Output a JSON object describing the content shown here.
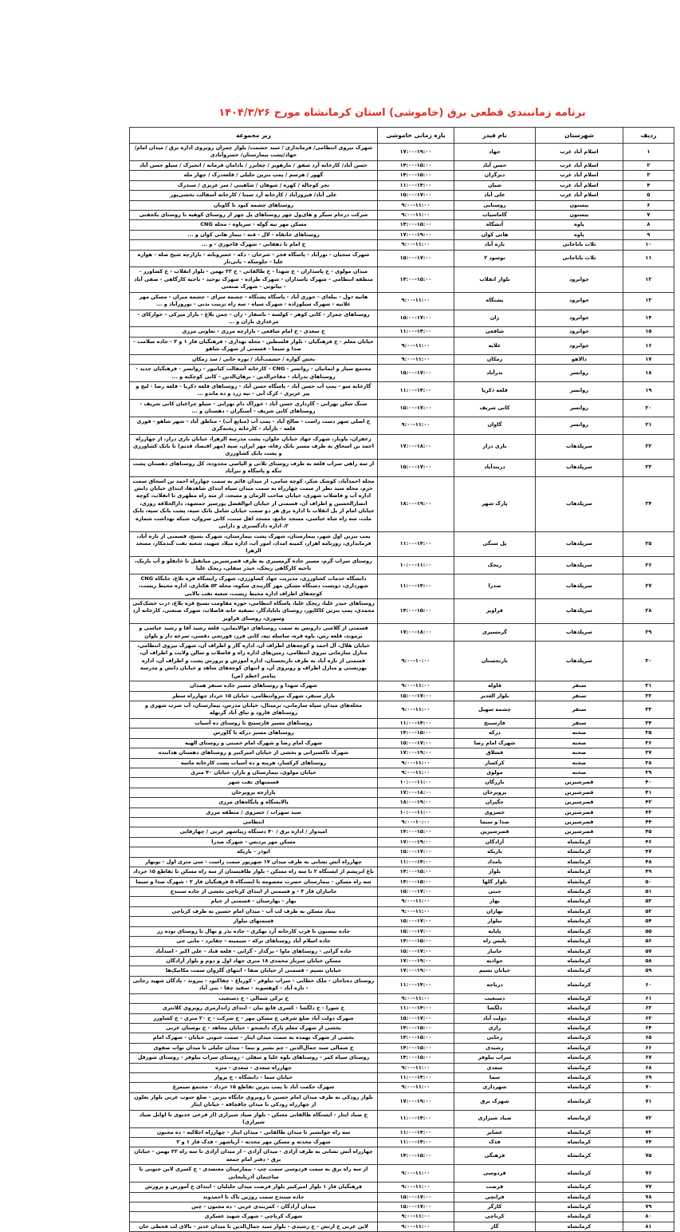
{
  "title": "برنامه زمانبندی  قطعی برق (خاموشی) استان کرمانشاه مورخ ۱۴۰۴/۳/۲۶",
  "title_color": "#e03127",
  "table": {
    "headers": {
      "no": "ردیف",
      "county": "شهرستان",
      "feeder": "نام فیدر",
      "time": "بازه زمانی خاموشی",
      "details": "زیر مجموعه"
    },
    "rows": [
      {
        "no": "۱",
        "county": "اسلام آباد غرب",
        "feeder": "جهاد",
        "time": "۱۷:۰۰-۱۹:۰۰",
        "details": "شهرک نیروی انتظامی/ فرمانداری / سید حشمت/ بلوار چمران روبروی اداره برق / میدان امام/جهاد/پشت بیمارستان/ خسروآبادی"
      },
      {
        "no": "۲",
        "county": "اسلام آباد غرب",
        "feeder": "حسن آباد",
        "time": "۱۴:۰۰-۱۵:۰۰",
        "details": "حسن آباد/ کارخانه آرد شفق / مارهویز / چغابزر / بادامان فرمانه / انجیرک / سیلو حسن آباد"
      },
      {
        "no": "۳",
        "county": "اسلام آباد غرب",
        "feeder": "دیزگران",
        "time": "۱۴:۰۰-۱۵:۰۰",
        "details": "گهور / هرسم / پمپ بنزین جلیلی / قلعه‌درک / چهار مله"
      },
      {
        "no": "۴",
        "county": "اسلام آباد غرب",
        "feeder": "شیان",
        "time": "۱۱:۰۰-۱۴:۰۰",
        "details": "تجر کوچاله / کهره / شوهان / شاهینی / سر عزیزی / سندرک"
      },
      {
        "no": "۵",
        "county": "اسلام آباد غرب",
        "feeder": "علی آباد",
        "time": "۱۵:۰۰-۱۷:۰۰",
        "details": "علی آباد/ فیروزآباد / کارخانه آرد سینا / کارخانه آسفالت بخشی‌پور"
      },
      {
        "no": "۶",
        "county": "بیستون",
        "feeder": "روستایی",
        "time": "۹:۰۰-۱۱:۰۰",
        "details": "روستاهای چشمه کبود تا گاوبان"
      },
      {
        "no": "۷",
        "county": "بیستون",
        "feeder": "گاماسیاب",
        "time": "۹:۰۰-۱۱:۰۰",
        "details": "شرکت درجام سیگر و های‌ول چهر روستاهای پل چهر از روستای کوهیه تا روستای یکجفتی"
      },
      {
        "no": "۸",
        "county": "پاوه",
        "feeder": "آتشگاه",
        "time": "۱۴:۰۰-۱۵:۰۰",
        "details": "مسکن مهر تپه گوله - سرپاوه - محله CNG"
      },
      {
        "no": "۹",
        "county": "پاوه",
        "feeder": "هانی کوان",
        "time": "۱۷:۰۰-۱۹:۰۰",
        "details": "روستاهای خانقاه - لال - فنه - بیمار هانی کوان و ..."
      },
      {
        "no": "۱۰",
        "county": "ثلاث باباجانی",
        "feeder": "تازه آباد",
        "time": "۹:۰۰-۱۱:۰۰",
        "details": "خ امام تا دهقانی - شهرک فاجوری - و ..."
      },
      {
        "no": "۱۱",
        "county": "ثلاث باباجانی",
        "feeder": "نوسود ۲",
        "time": "۱۵:۰۰-۱۷:۰۰",
        "details": "شهرک سجیان - نورآباد - پاسگاه فجر - شرخان - دکه - خسروبانه - بازارچه شیخ صله - هواره علیا - جلوسکه - بانی‌تار"
      },
      {
        "no": "۱۲",
        "county": "جوانرود",
        "feeder": "بلوار انقلاب",
        "time": "۱۴:۰۰-۱۵:۰۰",
        "details": "میدان مولوی - خ پاسداران - خ شهدا - خ طالقانی - خ ۲۲ بهمن - بلوار انقلاب - خ کشاورز - منطقه انتظامی - شهرک پاسداران - شهرک طراده - شهرک توحید - ناحیه کارگاهی - صفی آباد - بیانونی - شهرک صنعتی"
      },
      {
        "no": "۱۳",
        "county": "جوانرود",
        "feeder": "پشتگاه",
        "time": "۹:۰۰-۱۱:۰۰",
        "details": "هانیه ذول - بیله‌ای - حوری آباد - پاسگاه پشتگاه - چشمه سرای - چشمه میران - مسکن مهر علانیه - شهرک سیلوزاده - شهرک سپاه - سه راه تربیت بدنی - نوروزآباد و ..."
      },
      {
        "no": "۱۴",
        "county": "جوانرود",
        "feeder": "زان",
        "time": "۱۵:۰۰-۱۷:۰۰",
        "details": "روستاهای چمزار - کانی کوهر - کولسه - باسفار - زان - چمن بلاغ - بازار میرکی - خوارکای - مرغداری بازان و ..."
      },
      {
        "no": "۱۵",
        "county": "جوانرود",
        "feeder": "شافعی",
        "time": "۱۱:۰۰-۱۴:۰۰",
        "details": "خ سعدی - خ امام شافعی - بازارچه مرزی - تعاونی مرزی"
      },
      {
        "no": "۱۶",
        "county": "جوانرود",
        "feeder": "علایه",
        "time": "۹:۰۰-۱۱:۰۰",
        "details": "خیابان معلم - خ فرهنگیان - بلوار فلسطین - محله بهداری - فرهنگیان فاز ۱ و ۳ - جاده سلامت - صدا و سیما - قسمتی از شهرک شاهو"
      },
      {
        "no": "۱۷",
        "county": "دالاهو",
        "feeder": "زمکان",
        "time": "۹:۰۰-۱۱:۰۰",
        "details": "بخش گواره / حشمت‌آباد / بوره خانی / سد زمکان"
      },
      {
        "no": "۱۸",
        "county": "روانسر",
        "feeder": "بدرآباد",
        "time": "۱۵:۰۰-۱۷:۰۰",
        "details": "مجتمع سیار و ایمانیان - روانسر - CNG - کارخانه آسفالت کیانپور - روانسر - فرهنگیان جدید - روستاهای بدرآباد - مفاخرالدین - برهان‌الدین - کانی کوچکیه و ..."
      },
      {
        "no": "۱۹",
        "county": "روانسر",
        "feeder": "قلعه ذکریا",
        "time": "۱۱:۰۰-۱۴:۰۰",
        "details": "گازخانه سو - پمپ آب حسن آباد - پاسگاه حسن آباد - روستاهای قلعه ذکریا - قلعه رضا - لیج و پیر عزیزی - کرک آبی - تپه زرد و ده ماندو ..."
      },
      {
        "no": "۲۰",
        "county": "روانسر",
        "feeder": "کانی شریف",
        "time": "۱۵:۰۰-۱۷:۰۰",
        "details": "سنگ شکن نهرابی - گازداری حسن آباد - خوراک دام نهرابی - سیلو چراغیان کانی شریف - روستاهای کانی شریف - آسنگران - دهستان و ..."
      },
      {
        "no": "۲۱",
        "county": "روانسر",
        "feeder": "گاوان",
        "time": "۹:۰۰-۱۱:۰۰",
        "details": "خ اصلی شهر دست راست - صالح آباد - پمپ آب (منابع آب) - مناطق آباد - شهر شاهو - قوری قلعه - نازآباد - کارخانه ریخته‌گری"
      },
      {
        "no": "۲۲",
        "county": "سرپلذهاب",
        "feeder": "بازی دراز",
        "time": "۱۷:۰۰-۱۸:۰۰",
        "details": "زعفران، پاوبار، شهرک جهاد خیابان حلوان، پشت مدرسه الزهرا، خیابان بازی دراز، از چهارراه احمد بن اسحاق به طرف مسیر بانک رفاه، مهر ایران، سپه (مهر اقتصاد قدیم) تا بانک کشاورزی و پشت بانک کشاورزی"
      },
      {
        "no": "۲۳",
        "county": "سرپلذهاب",
        "feeder": "دربندآباد",
        "time": "۱۵:۰۰-۱۷:۰۰",
        "details": "از سه راهی سراب قلعه به طرف روستای ثلاثی و الیاسی محدوده، کل روستاهای دهستان پشت تنگه و پاسگاه و نیرآباد"
      },
      {
        "no": "۲۴",
        "county": "سرپلذهاب",
        "feeder": "پارک شهر",
        "time": "۱۸:۰۰-۱۹:۰۰",
        "details": "محله احمدآباد، کوشک شکر، کوچه شامی، از میدان قائم به سمت چهارراه احمد بن اسحاق سمت حرم، محله سید نظر از سمت چهارراه به سمت میدان سپاه ابتدای شاهدها، ابتدای خیابان دانش اداره آب و فاضلاب شهری، خیابان صاحب الزمان و مسجد، از سه راه مطهری تا انقلاب، کوچه انصارالحسین و اطراف آن، قسمتی از خیابان ابوالفضل پورسپر جمشهد، دارالخلافه روزی، خیابان امام از پل انقلاب تا اداره برق هر دو سمت خیابان شامل بانک سپه، پشت بانک سپه، بانک ملت، سه راه شاه عباسی، مسجد جامع، مسجد اهل سنت، کانی سروان، شبکه بهداشت شماره ۲، اداره دادگستری و دارایی"
      },
      {
        "no": "۲۵",
        "county": "سرپلذهاب",
        "feeder": "پل سنگی",
        "time": "۱۱:۰۰-۱۴:۰۰",
        "details": "پمپ بنزین اول شهر، بیمارستان، شهرک پشت بیمارستان، شهرک بسیج، قسمتی از تازه آباد، فرمانداری، روزنامه اهرار، کمیته امداد، امور آب، اداره میلاد شهید، شعبه نفت گندمکار، مسجد الزهرا"
      },
      {
        "no": "۲۶",
        "county": "سرپلذهاب",
        "feeder": "ریجک",
        "time": "۱۰:۰۰-۱۱:۰۰",
        "details": "روستای سراب گرم، مسیر جاده گرمسیری به طرف قصرشیرین میانقیل تا خانقلو و آب باریک، ناحیه کارگاهی ریجک، حیدر سفلی، ریجک علیا"
      },
      {
        "no": "۲۷",
        "county": "سرپلذهاب",
        "feeder": "صدرا",
        "time": "۱۱:۰۰-۱۴:۰۰",
        "details": "دانشگاه خدمات کشاورزی، مدیریت جهاد کشاورزی، شهرک زایشگاه قره بلاغ، جایگاه CNG شهرداری، دویست دستگاه مسکن مهر گازبندی شکوه، محله ۵۳ هکتاری، اداره محیط زیست، کوچه‌های اطراف اداره محیط زیست، شعبه نفت بالایی"
      },
      {
        "no": "۲۸",
        "county": "سرپلذهاب",
        "feeder": "قراویز",
        "time": "۱۴:۰۰-۱۵:۰۰",
        "details": "روستاهای حیدر علیا، ریجک علیا، پاسگاه انتظامی، حوزه مقاومت بسیج قره بلاغ، ذرت خشک‌کنی محمدی، پمپ بنزین کاکاپور، روستای بابایادگار، تصفیه خانه فاضلاب، شهرک صنعتی، کارخانه آرد وسوری، روستای قراویز"
      },
      {
        "no": "۲۹",
        "county": "سرپلذهاب",
        "feeder": "گرمسیری",
        "time": "۱۷:۰۰-۱۸:۰۰",
        "details": "قسمتی از گلاشی داروبس به سمت روستاهای ذوالایمانی، قلعه رشید آقا و رشید عباسی و برموند، قلعه رش، باوه قره، ساسله تپه، کانی فرز، قورنجی دقسی، سرخه دار و بلوان"
      },
      {
        "no": "۳۰",
        "county": "سرپلذهاب",
        "feeder": "نارنجستان",
        "time": "۹:۰۰-۱۰:۰۰",
        "details": "خیابان هلال، آل احمد و کوچه‌های اطراف آن، اداره گاز و اطراف آن، شهرک نیروی انتظامی، منازل سازمانی نیروی انتظامی، زمین‌های اداره راه و فاضلاب و سالن ولایت و اطراف آن، قسمتی از تازه آباد به طرف نارنجستان، اداره آموزش و پرورش پشت و اطراف آن، اداره بهزیستی و منازل اطراف و روبروی آن، و انتهای کوچه‌های شاهد و خیابان دانش و مدرسه پیامبر اعظم (ص)"
      },
      {
        "no": "۳۱",
        "county": "سنقر",
        "feeder": "فاوله",
        "time": "۹:۰۰-۱۱:۰۰",
        "details": "شهرک شهدا و روستاهای مسیر جاده سنقر همدان"
      },
      {
        "no": "۳۲",
        "county": "سنقر",
        "feeder": "بلوار الغدیر",
        "time": "۱۵:۰۰-۱۷:۰۰",
        "details": "بازار سنقر، شهرک نیروانتظامی، خیابان ۱۵ خرداد چهارراه سطر"
      },
      {
        "no": "۳۳",
        "county": "سنقر",
        "feeder": "چشمه سهیل",
        "time": "۹:۰۰-۱۱:۰۰",
        "details": "محله‌های میدان سپاه سازمانی، ترمینال، خیابان مدرس، بیمارستان، آب شرب شهری و روستاهای فارود و نیاق آباد گزنهله"
      },
      {
        "no": "۳۴",
        "county": "سنقر",
        "feeder": "فارسینج",
        "time": "۱۱:۰۰-۱۴:۰۰",
        "details": "روستاهای مسیر فارسینج تا روستای ده آسیاب"
      },
      {
        "no": "۳۵",
        "county": "صحنه",
        "feeder": "درکه",
        "time": "۱۴:۰۰-۱۵:۰۰",
        "details": "روستاهای مسیر درکه تا گاورس"
      },
      {
        "no": "۳۶",
        "county": "صحنه",
        "feeder": "شهرک امام رضا",
        "time": "۱۵:۰۰-۱۷:۰۰",
        "details": "شهرک امام رضا و شهرک امام خمینی و روستای الهیه"
      },
      {
        "no": "۳۷",
        "county": "صحنه",
        "feeder": "قشلاق",
        "time": "۱۷:۰۰-۱۹:۰۰",
        "details": "شهرک تاکسیرانی و بخشی از خیابان امیرکبیر و روستاهای دهستان هدابنده"
      },
      {
        "no": "۳۸",
        "county": "صحنه",
        "feeder": "کرکسار",
        "time": "۹:۰۰-۱۱:۰۰",
        "details": "روستاهای کرکسار، هرینه و ده آسیاب پست کارخانه ماسه"
      },
      {
        "no": "۳۹",
        "county": "صحنه",
        "feeder": "مولوی",
        "time": "۹:۰۰-۱۱:۰۰",
        "details": "خیابان مولوی، بیمارستان و بازار، خیابان ۴۰ متری"
      },
      {
        "no": "۴۰",
        "county": "قصرشیرین",
        "feeder": "بازرگان",
        "time": "۱۰:۰۰-۱۱:۰۰",
        "details": "قسمتهای نفت شهر"
      },
      {
        "no": "۴۱",
        "county": "قصرشیرین",
        "feeder": "پرویزخان",
        "time": "۱۷:۰۰-۱۸:۰۰",
        "details": "بازارچه پرویزخان"
      },
      {
        "no": "۴۲",
        "county": "قصرشیرین",
        "feeder": "جگیران",
        "time": "۱۸:۰۰-۱۹:۰۰",
        "details": "پالایشگاه و پایگاه‌های مرزی"
      },
      {
        "no": "۴۳",
        "county": "قصرشیرین",
        "feeder": "خسروی",
        "time": "۱۰:۰۰-۱۱:۰۰",
        "details": "سید سهراب / خسروی / منطقه مرزی"
      },
      {
        "no": "۴۴",
        "county": "قصرشیرین",
        "feeder": "صدا و سیما",
        "time": "۹:۰۰-۱۰:۰۰",
        "details": "انتظامی"
      },
      {
        "no": "۴۵",
        "county": "قصرشیرین",
        "feeder": "قصرشیرین",
        "time": "۱۴:۰۰-۱۵:۰۰",
        "details": "امیدوار / اداره برق / ۴۰ دستگاه زیباشهر غربی / چهارقاپی"
      },
      {
        "no": "۴۶",
        "county": "کرمانشاه",
        "feeder": "آزادگان",
        "time": "۱۷:۰۰-۱۹:۰۰",
        "details": "مسکن مهر پردیس - شهرک صدرا"
      },
      {
        "no": "۴۷",
        "county": "کرمانشاه",
        "feeder": "باریکه",
        "time": "۱۵:۰۰-۱۷:۰۰",
        "details": "ابوذر - باریکه"
      },
      {
        "no": "۴۸",
        "county": "کرمانشاه",
        "feeder": "بامداد",
        "time": "۱۱:۰۰-۱۴:۰۰",
        "details": "چهارراه آتش نشانی به طرف میدان ۱۷ شهریور سمت راست - سی متری اول - نوبهار"
      },
      {
        "no": "۴۹",
        "county": "کرمانشاه",
        "feeder": "بلوار",
        "time": "۱۴:۰۰-۱۵:۰۰",
        "details": "باغ ابریشم از ایستگاه ۲ تا سه راه مسکن - بلوار طاقبستان از سه راه مسکن تا تقاطع ۱۵ خرداد"
      },
      {
        "no": "۵۰",
        "county": "کرمانشاه",
        "feeder": "بلوار گلها",
        "time": "۱۴:۰۰-۱۵:۰۰",
        "details": "سه راه مسکن - بیمارستان حضرت معصومه تا ایستگاه ۵ فرهنگیان فاز ۲ - شهرک صدا و سیما"
      },
      {
        "no": "۵۱",
        "county": "کرمانشاه",
        "feeder": "جنتی",
        "time": "۱۵:۰۰-۱۷:۰۰",
        "details": "جانبازان فاز ۳ - و قسمتی از ابتدای کرناچی بخشی از جاده سنندج"
      },
      {
        "no": "۵۲",
        "county": "کرمانشاه",
        "feeder": "بهار",
        "time": "۹:۰۰-۱۱:۰۰",
        "details": "بهار - بهارستان - قسمتی از خیام"
      },
      {
        "no": "۵۳",
        "county": "کرمانشاه",
        "feeder": "بهاران",
        "time": "۹:۰۰-۱۱:۰۰",
        "details": "بنیاد مسکن به طرف لب آب - میدان امام حسین به طرف کرناچی"
      },
      {
        "no": "۵۴",
        "county": "کرمانشاه",
        "feeder": "بیلوار",
        "time": "۱۵:۰۰-۱۷:۰۰",
        "details": "قسمتهای بیلوار"
      },
      {
        "no": "۵۵",
        "county": "کرمانشاه",
        "feeder": "پایانه",
        "time": "۱۵:۰۰-۱۷:۰۰",
        "details": "جاده بیستون تا قرب کارخانه آرد بهکری - جاده بذر و نهال تا روستای نوده رز"
      },
      {
        "no": "۵۶",
        "county": "کرمانشاه",
        "feeder": "پلیس راه",
        "time": "۱۴:۰۰-۱۵:۰۰",
        "details": "جاده اسلام آباد روستاهای ترکه - سیمینه - چقابرد - مابی جی"
      },
      {
        "no": "۵۷",
        "county": "کرمانشاه",
        "feeder": "جانیار",
        "time": "۱۵:۰۰-۱۷:۰۰",
        "details": "جاده گرانی - روستاهای ماوا - بزگدار - گرانی - قلعه قباد - علی اکبر - اسدآباد"
      },
      {
        "no": "۵۸",
        "county": "کرمانشاه",
        "feeder": "جوادیه",
        "time": "۱۷:۰۰-۱۹:۰۰",
        "details": "مسکن خیابان سرباز محمدی ۱۸ متری جهاد اول و دوم و بلوار آزادگان"
      },
      {
        "no": "۵۹",
        "county": "کرمانشاه",
        "feeder": "خیابان نسیم",
        "time": "۱۷:۰۰-۱۹:۰۰",
        "details": "خیابان نسیم - قسمتی از خیابان صفا - انتهای گلزوان سمت مکانیک‌ها"
      },
      {
        "no": "۶۰",
        "county": "کرمانشاه",
        "feeder": "درباجه",
        "time": "۱۱:۰۰-۱۴:۰۰",
        "details": "روستای ده‌باجان - ملک خطایی - سراب نیلوفر - کوریاغ - چقاکبود - پیروند - پادگان شهید رجایی - تازه آباد - کوهسوند - سفید چقا - بنی آباد"
      },
      {
        "no": "۶۱",
        "county": "کرمانشاه",
        "feeder": "دستغیب",
        "time": "۹:۰۰-۱۱:۰۰",
        "details": "خ ترکی شمالی - خ دستغیب"
      },
      {
        "no": "۶۲",
        "county": "کرمانشاه",
        "feeder": "دلگشا",
        "time": "۱۱:۰۰-۱۴:۰۰",
        "details": "خ شورا - خ دلگشا - کسری قانع بیان - ابتدای ژاندارمری روبروی کلانتری"
      },
      {
        "no": "۶۳",
        "county": "کرمانشاه",
        "feeder": "دولت آباد",
        "time": "۱۵:۰۰-۱۷:۰۰",
        "details": "شهرک دولت آباد ضلع شرقی خ مسکن مهر - خ شرکت - خ ۲۰ متری - خ کشاورز"
      },
      {
        "no": "۶۴",
        "county": "کرمانشاه",
        "feeder": "رازی",
        "time": "۱۴:۰۰-۱۵:۰۰",
        "details": "بخشی از شهرک معلم پارک دانشجو - خیابان مجاهد - خ بوستان غربی"
      },
      {
        "no": "۶۵",
        "county": "کرمانشاه",
        "feeder": "رجایی",
        "time": "۱۴:۰۰-۱۵:۰۰",
        "details": "بخشی از شهرک بهمده به سمت میدان ایثار - سمت جنوبی خیابان - شهرک امام"
      },
      {
        "no": "۶۶",
        "county": "کرمانشاه",
        "feeder": "رشیدی",
        "time": "۱۴:۰۰-۱۵:۰۰",
        "details": "خ شمالی سید جمال‌الدین - چم بشیر و نیما - میدان جلیلی تا میدان نواب صفوی"
      },
      {
        "no": "۶۷",
        "county": "کرمانشاه",
        "feeder": "سراب نیلوفر",
        "time": "۱۴:۰۰-۱۵:۰۰",
        "details": "روستای سیاه کمر - روستاهای بلوه علیا و سفلی - روستای سراب نیلوفر - روستای شورقل"
      },
      {
        "no": "۶۸",
        "county": "کرمانشاه",
        "feeder": "سعدی",
        "time": "۹:۰۰-۱۱:۰۰",
        "details": "چهارراه سعدی - سعدی - منزه"
      },
      {
        "no": "۶۹",
        "county": "کرمانشاه",
        "feeder": "سما",
        "time": "۱۱:۰۰-۱۴:۰۰",
        "details": "خیابان سما - دانشگاه - خ پرواز"
      },
      {
        "no": "۷۰",
        "county": "کرمانشاه",
        "feeder": "شهرداری",
        "time": "۹:۰۰-۱۱:۰۰",
        "details": "شهرک حکمت آباد تا پمپ بنزین تقاطع ۱۵ خرداد - مجتمع سیمرغ"
      },
      {
        "no": "۷۱",
        "county": "کرمانشاه",
        "feeder": "شهرک برق",
        "time": "۱۷:۰۰-۱۹:۰۰",
        "details": "بلوار رودکی به طرف میدان امام حسین تا روبروی جایگاه بنزین - ضلع جنوب غربی بلوار نعلون از چهارراه رودکی تا میدان چاقچاقه - خیابان ایثار"
      },
      {
        "no": "۷۲",
        "county": "کرمانشاه",
        "feeder": "صیاد شیرازی",
        "time": "۱۱:۰۰-۱۴:۰۰",
        "details": "خ صیاد ایثار - ایستگاه طالقانی مسکن - بلوار صیاد شیرازی (از فرعی خدیوی تا اوایل صیاد شیرازی)"
      },
      {
        "no": "۷۳",
        "county": "کرمانشاه",
        "feeder": "عشایر",
        "time": "۱۱:۰۰-۱۴:۰۰",
        "details": "سه راه جوانشیر تا میدان طالقانی - میدان ایثار - چهارراه اجلالیه - ده مجنون"
      },
      {
        "no": "۷۴",
        "county": "کرمانشاه",
        "feeder": "فدک",
        "time": "۱۱:۰۰-۱۴:۰۰",
        "details": "شهرک محدثه و مسکن مهر محدثه - آریاشهر - فدک فاز ۱ و ۲"
      },
      {
        "no": "۷۵",
        "county": "کرمانشاه",
        "feeder": "فرهنگی",
        "time": "۱۴:۰۰-۱۵:۰۰",
        "details": "چهارراه آتش نشانی به طرف آزادی - میدان آزادی - از میدان آزادی تا سه راه ۲۲ بهمن - خیابان برق - دفتر امام جمعه"
      },
      {
        "no": "۷۶",
        "county": "کرمانشاه",
        "feeder": "فردوسی",
        "time": "۹:۰۰-۱۱:۰۰",
        "details": "از سه راه برق به سمت فردوسی سمت چپ - بیمارستان معتضدی - خ کسری لاین جنوبی تا ساختمان آذربایجانی"
      },
      {
        "no": "۷۷",
        "county": "کرمانشاه",
        "feeder": "فرصت",
        "time": "۹:۰۰-۱۱:۰۰",
        "details": "فرهنگیان فاز ۱ بلوار امیرکبیر بلوار فرصت میدان جلیلیان - ابتدای خ آموزش و پرورش"
      },
      {
        "no": "۷۸",
        "county": "کرمانشاه",
        "feeder": "فرانچی",
        "time": "۱۵:۰۰-۱۷:۰۰",
        "details": "جاده سنندج سمت روژین تاک تا احمدوند"
      },
      {
        "no": "۷۹",
        "county": "کرمانشاه",
        "feeder": "کارگر",
        "time": "۱۵:۰۰-۱۷:۰۰",
        "details": "میدان آزادگان - کمربندی غربی - ده مجنون - چبن"
      },
      {
        "no": "۸۰",
        "county": "کرمانشاه",
        "feeder": "کرناچی",
        "time": "۹:۰۰-۱۱:۰۰",
        "details": "شهرک کرناچی - شهرک شهید عسکری"
      },
      {
        "no": "۸۱",
        "county": "کرمانشاه",
        "feeder": "گاز",
        "time": "۹:۰۰-۱۱:۰۰",
        "details": "لاین غربی خ ارتش - خ رشیدی - بلوار سید جمال‌الدین تا میدان غدیر - بالای لب قحطی خان"
      }
    ]
  }
}
